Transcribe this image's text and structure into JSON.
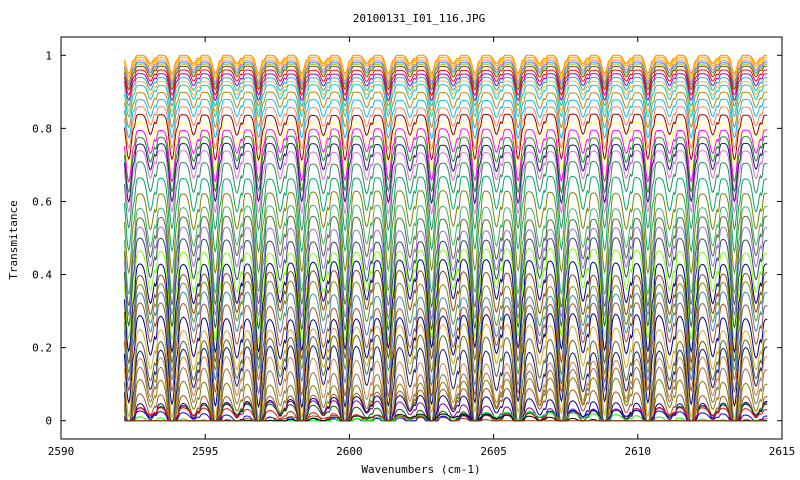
{
  "chart_data": {
    "type": "line",
    "title": "20100131_I01_116.JPG",
    "xlabel": "Wavenumbers (cm-1)",
    "ylabel": "Transmitance",
    "xlim": [
      2590,
      2615
    ],
    "ylim": [
      -0.05,
      1.05
    ],
    "x_ticks": [
      2590,
      2595,
      2600,
      2605,
      2610,
      2615
    ],
    "x_tick_labels": [
      "2590",
      "2595",
      "2600",
      "2605",
      "2610",
      "2615"
    ],
    "y_ticks": [
      0,
      0.2,
      0.4,
      0.6,
      0.8,
      1
    ],
    "y_tick_labels": [
      "0",
      "0.2",
      "0.4",
      "0.6",
      "0.8",
      "1"
    ],
    "grid": false,
    "legend": "none",
    "x_range": [
      2592.2,
      2614.5
    ],
    "line_period_cm1": 0.75,
    "series_baselines": [
      1.0,
      0.995,
      0.99,
      0.985,
      0.98,
      0.975,
      0.97,
      0.96,
      0.95,
      0.94,
      0.93,
      0.92,
      0.9,
      0.88,
      0.86,
      0.84,
      0.82,
      0.8,
      0.78,
      0.76,
      0.74,
      0.71,
      0.67,
      0.63,
      0.59,
      0.56,
      0.53,
      0.5,
      0.47,
      0.44,
      0.41,
      0.38,
      0.35,
      0.32,
      0.29,
      0.26,
      0.23,
      0.2,
      0.17,
      0.14,
      0.11,
      0.08,
      0.06,
      0.045,
      0.035,
      0.025,
      0.018,
      0.012,
      0.007,
      0.003
    ],
    "series_colors": [
      "#ff8c00",
      "#ffa500",
      "#ffd700",
      "#ff69b4",
      "#1e90ff",
      "#9acd32",
      "#8b4513",
      "#ff0000",
      "#9400d3",
      "#20b2aa",
      "#ffb347",
      "#00ced1",
      "#b8860b",
      "#00bfff",
      "#ff7f50",
      "#8b0000",
      "#ffff66",
      "#ff00ff",
      "#228b22",
      "#191970",
      "#da70d6",
      "#2e8b57",
      "#00a86b",
      "#808000",
      "#3cb371",
      "#556b2f",
      "#9370db",
      "#2f4f4f",
      "#7cfc00",
      "#00008b",
      "#8b4513",
      "#6b8e23",
      "#4682b4",
      "#a0522d",
      "#000080",
      "#daa520",
      "#556b2f",
      "#191970",
      "#cd853f",
      "#8b7355",
      "#808000",
      "#a0522d",
      "#00008b",
      "#8b008b",
      "#006400",
      "#ff0000",
      "#0000ff",
      "#00ff00",
      "#000000",
      "#8b4513"
    ]
  }
}
